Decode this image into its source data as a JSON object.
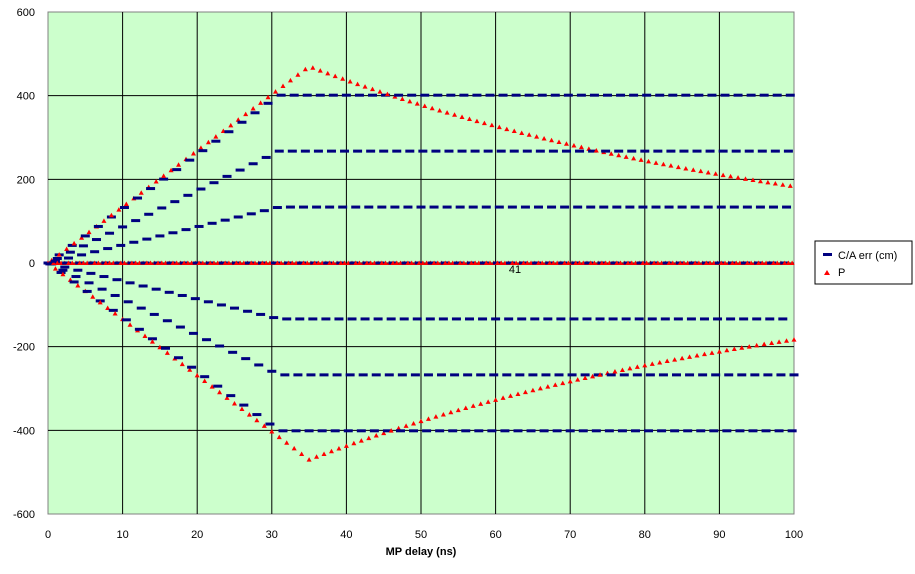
{
  "chart_data": {
    "type": "scatter",
    "title": "",
    "xlabel": "MP delay (ns)",
    "ylabel": "",
    "xlim": [
      0,
      100
    ],
    "ylim": [
      -600,
      600
    ],
    "x_ticks": [
      "0",
      "10",
      "20",
      "30",
      "40",
      "50",
      "60",
      "70",
      "80",
      "90",
      "100"
    ],
    "y_ticks": [
      "600",
      "400",
      "200",
      "0",
      "-200",
      "-400",
      "-600"
    ],
    "grid": true,
    "background_color": "#ccffcc",
    "legend_position": "right",
    "annotation": "41",
    "annotation_x": 62.5,
    "annotation_y": -14,
    "series": [
      {
        "name": "C/A err (cm)",
        "marker": "dash",
        "color": "#000080"
      },
      {
        "name": "P",
        "marker": "triangle",
        "color": "#ff0000"
      }
    ],
    "data_generation": {
      "x_step_ns": 0.25,
      "sawtooth_period": 7,
      "triangle_period": 4,
      "ca_max_cm": 468,
      "p_max_cm": 470,
      "ca_flat_from_ns": 31,
      "p_turnover_ns": 35,
      "p_decay_per_ns": 0.0145
    }
  }
}
